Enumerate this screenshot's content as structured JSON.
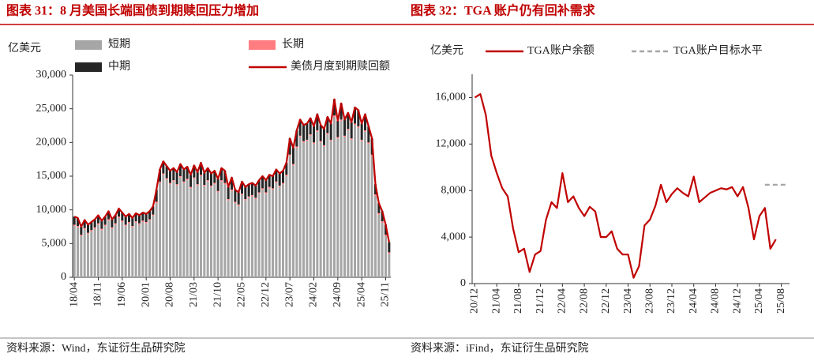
{
  "chart_data": [
    {
      "type": "bar",
      "stacked": true,
      "title": "图表 31：8 月美国长端国债到期赎回压力增加",
      "source": "资料来源：Wind，东证衍生品研究院",
      "y_label": "亿美元",
      "ylim": [
        0,
        30000
      ],
      "yticks": [
        0,
        {
          "value": 5000,
          "label": "5,000"
        },
        {
          "value": 10000,
          "label": "10,000"
        },
        {
          "value": 15000,
          "label": "15,000"
        },
        {
          "value": 20000,
          "label": "20,000"
        },
        {
          "value": 25000,
          "label": "25,000"
        },
        {
          "value": 30000,
          "label": "30,000"
        }
      ],
      "categories": [
        "18/04",
        null,
        null,
        null,
        null,
        null,
        null,
        "18/11",
        null,
        null,
        null,
        null,
        null,
        null,
        "19/06",
        null,
        null,
        null,
        null,
        null,
        null,
        "20/01",
        null,
        null,
        null,
        null,
        null,
        null,
        "20/08",
        null,
        null,
        null,
        null,
        null,
        null,
        "21/03",
        null,
        null,
        null,
        null,
        null,
        null,
        "21/10",
        null,
        null,
        null,
        null,
        null,
        null,
        "22/05",
        null,
        null,
        null,
        null,
        null,
        null,
        "22/12",
        null,
        null,
        null,
        null,
        null,
        null,
        "23/07",
        null,
        null,
        null,
        null,
        null,
        null,
        "24/02",
        null,
        null,
        null,
        null,
        null,
        null,
        "24/09",
        null,
        null,
        null,
        null,
        null,
        null,
        "25/04",
        null,
        null,
        null,
        null,
        null,
        null,
        "25/11",
        null
      ],
      "series": [
        {
          "name": "短期",
          "color": "#a6a6a6",
          "values": [
            7600,
            7400,
            6100,
            7100,
            6400,
            6800,
            7200,
            7800,
            7000,
            7600,
            8400,
            7200,
            7800,
            8800,
            8200,
            7600,
            8000,
            7400,
            8100,
            7800,
            8200,
            8000,
            8400,
            9100,
            11000,
            14000,
            15200,
            14500,
            13800,
            14200,
            13600,
            14800,
            14000,
            14400,
            13200,
            14600,
            13600,
            15000,
            13500,
            14200,
            13400,
            13800,
            12600,
            14200,
            13800,
            11400,
            12800,
            11000,
            10600,
            12200,
            11400,
            11800,
            12000,
            11600,
            12400,
            13000,
            12400,
            13200,
            13000,
            14000,
            13400,
            13800,
            15000,
            18000,
            16600,
            19200,
            20800,
            20000,
            20200,
            21000,
            19800,
            21600,
            20000,
            19400,
            21200,
            20200,
            23800,
            20600,
            23200,
            20800,
            21800,
            20400,
            22600,
            22200,
            20200,
            21600,
            19800,
            18000,
            12100,
            9300,
            8100,
            6100,
            3500
          ]
        },
        {
          "name": "长期",
          "color": "#ff7c80",
          "values": [
            200,
            200,
            200,
            200,
            200,
            200,
            200,
            200,
            200,
            200,
            200,
            200,
            200,
            200,
            200,
            200,
            200,
            200,
            200,
            200,
            200,
            200,
            200,
            200,
            200,
            200,
            200,
            200,
            200,
            200,
            200,
            200,
            200,
            200,
            200,
            200,
            200,
            200,
            200,
            200,
            200,
            200,
            200,
            200,
            200,
            200,
            200,
            200,
            200,
            200,
            200,
            200,
            200,
            200,
            200,
            200,
            200,
            200,
            200,
            200,
            200,
            200,
            200,
            200,
            200,
            200,
            200,
            200,
            200,
            200,
            200,
            200,
            200,
            200,
            200,
            200,
            200,
            200,
            200,
            200,
            200,
            200,
            200,
            200,
            200,
            200,
            200,
            200,
            200,
            200,
            200,
            200,
            200
          ]
        },
        {
          "name": "中期",
          "color": "#262626",
          "values": [
            1200,
            1200,
            1200,
            1200,
            1200,
            1200,
            1200,
            1200,
            1200,
            1200,
            1200,
            1200,
            1200,
            1200,
            1200,
            1200,
            1200,
            1200,
            1200,
            1200,
            1200,
            1200,
            1200,
            1200,
            1800,
            1800,
            1800,
            1800,
            1800,
            1800,
            1800,
            1800,
            1800,
            1800,
            1800,
            1800,
            1800,
            1800,
            1800,
            1800,
            1800,
            1800,
            1800,
            1800,
            1800,
            1800,
            1800,
            1800,
            1800,
            1800,
            1800,
            1800,
            1800,
            1800,
            1800,
            1800,
            1800,
            1800,
            1800,
            1800,
            1800,
            1800,
            1800,
            2400,
            2400,
            2400,
            2400,
            2400,
            2400,
            2400,
            2400,
            2400,
            2400,
            2400,
            2400,
            2400,
            2400,
            2400,
            2400,
            2400,
            2400,
            2400,
            2400,
            2400,
            2400,
            2400,
            2400,
            2400,
            1500,
            1500,
            1500,
            1500,
            1500
          ]
        },
        {
          "name": "美债月度到期赎回额",
          "type": "line",
          "color": "#c00000",
          "values": [
            9000,
            8800,
            7500,
            8500,
            7800,
            8200,
            8600,
            9200,
            8400,
            9000,
            9800,
            8600,
            9200,
            10200,
            9600,
            9000,
            9400,
            8800,
            9500,
            9200,
            9600,
            9400,
            9800,
            10500,
            13000,
            16000,
            17200,
            16500,
            15800,
            16200,
            15600,
            16800,
            16000,
            16400,
            15200,
            16600,
            15600,
            17000,
            15500,
            16200,
            15400,
            15800,
            14600,
            16200,
            15800,
            13400,
            14800,
            13000,
            12600,
            14200,
            13400,
            13800,
            14000,
            13600,
            14400,
            15000,
            14400,
            15200,
            15000,
            16000,
            15400,
            15800,
            17000,
            20600,
            19200,
            21800,
            23400,
            22600,
            22800,
            23600,
            22400,
            24200,
            22600,
            22000,
            23800,
            22800,
            26400,
            23200,
            25800,
            23400,
            24400,
            23000,
            25200,
            24800,
            22800,
            24200,
            22400,
            20600,
            13800,
            11000,
            9800,
            7800,
            5200
          ]
        }
      ]
    },
    {
      "type": "line",
      "title": "图表 32：TGA 账户仍有回补需求",
      "source": "资料来源：iFind，东证衍生品研究院",
      "y_label": "亿美元",
      "ylim": [
        0,
        18000
      ],
      "yticks": [
        0,
        {
          "value": 4000,
          "label": "4,000"
        },
        {
          "value": 8000,
          "label": "8,000"
        },
        {
          "value": 12000,
          "label": "12,000"
        },
        {
          "value": 16000,
          "label": "16,000"
        }
      ],
      "categories": [
        "20/12",
        null,
        null,
        null,
        "21/04",
        null,
        null,
        null,
        "21/08",
        null,
        null,
        null,
        "21/12",
        null,
        null,
        null,
        "22/04",
        null,
        null,
        null,
        "22/08",
        null,
        null,
        null,
        "22/12",
        null,
        null,
        null,
        "23/04",
        null,
        null,
        null,
        "23/08",
        null,
        null,
        null,
        "23/12",
        null,
        null,
        null,
        "24/04",
        null,
        null,
        null,
        "24/08",
        null,
        null,
        null,
        "24/12",
        null,
        null,
        null,
        "25/04",
        null,
        null,
        null,
        "25/08",
        null
      ],
      "series": [
        {
          "name": "TGA账户余额",
          "color": "#c00000",
          "values": [
            16000,
            16300,
            14500,
            11000,
            9500,
            8200,
            7500,
            4700,
            2700,
            3000,
            1000,
            2500,
            2800,
            5500,
            7000,
            6500,
            9500,
            7000,
            7500,
            6500,
            5800,
            6600,
            6200,
            4000,
            4000,
            4500,
            3000,
            2500,
            2500,
            500,
            1500,
            5000,
            5500,
            6700,
            8500,
            7000,
            7700,
            8200,
            7800,
            7500,
            9200,
            7000,
            7400,
            7800,
            8000,
            8200,
            8100,
            8300,
            7500,
            8300,
            6500,
            3800,
            5800,
            6500,
            3000,
            3800,
            null,
            null
          ]
        },
        {
          "name": "TGA账户目标水平",
          "color": "#a6a6a6",
          "dash": true,
          "values": [
            null,
            null,
            null,
            null,
            null,
            null,
            null,
            null,
            null,
            null,
            null,
            null,
            null,
            null,
            null,
            null,
            null,
            null,
            null,
            null,
            null,
            null,
            null,
            null,
            null,
            null,
            null,
            null,
            null,
            null,
            null,
            null,
            null,
            null,
            null,
            null,
            null,
            null,
            null,
            null,
            null,
            null,
            null,
            null,
            null,
            null,
            null,
            null,
            null,
            null,
            null,
            null,
            null,
            8500,
            8500,
            8500,
            8500,
            8500
          ]
        }
      ]
    }
  ]
}
